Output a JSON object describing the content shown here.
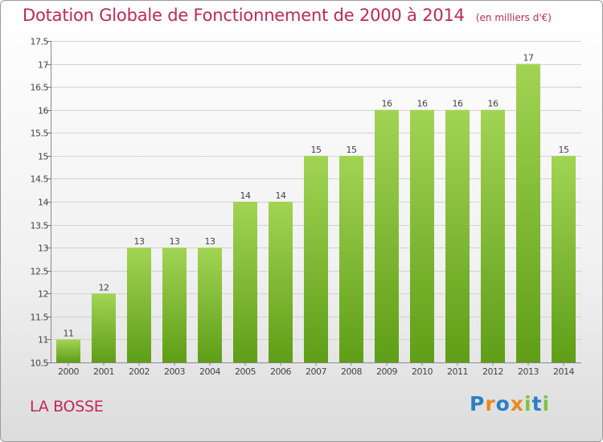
{
  "title": "Dotation Globale de Fonctionnement de 2000 à 2014",
  "unit": "(en milliers d'€)",
  "location": "LA BOSSE",
  "logo_text": "Proxiti",
  "colors": {
    "title": "#c0275a",
    "bar_top": "#9fd24f",
    "bar_bottom": "#62a019",
    "grid": "#cfcfcf"
  },
  "chart_data": {
    "type": "bar",
    "title": "Dotation Globale de Fonctionnement de 2000 à 2014",
    "subtitle": "(en milliers d'€)",
    "xlabel": "",
    "ylabel": "",
    "categories": [
      "2000",
      "2001",
      "2002",
      "2003",
      "2004",
      "2005",
      "2006",
      "2007",
      "2008",
      "2009",
      "2010",
      "2011",
      "2012",
      "2013",
      "2014"
    ],
    "values": [
      11,
      12,
      13,
      13,
      13,
      14,
      14,
      15,
      15,
      16,
      16,
      16,
      16,
      17,
      15
    ],
    "ylim": [
      10.5,
      17.5
    ],
    "yticks": [
      10.5,
      11,
      11.5,
      12,
      12.5,
      13,
      13.5,
      14,
      14.5,
      15,
      15.5,
      16,
      16.5,
      17,
      17.5
    ],
    "ytick_labels": [
      "10.5",
      "11",
      "11.5",
      "12",
      "12.5",
      "13",
      "13.5",
      "14",
      "14.5",
      "15",
      "15.5",
      "16",
      "16.5",
      "17",
      "17.5"
    ],
    "grid": true,
    "legend": "none"
  }
}
